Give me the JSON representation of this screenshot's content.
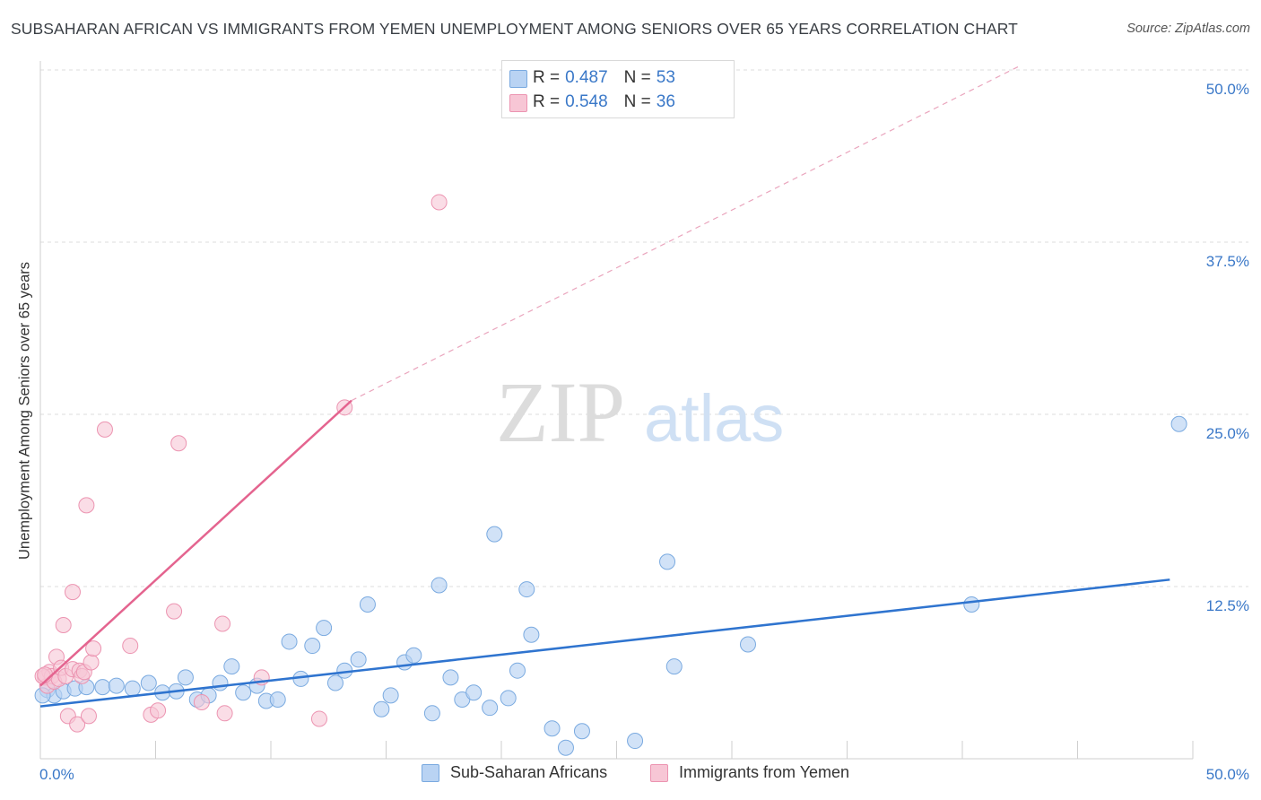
{
  "title": "SUBSAHARAN AFRICAN VS IMMIGRANTS FROM YEMEN UNEMPLOYMENT AMONG SENIORS OVER 65 YEARS CORRELATION CHART",
  "source": "Source: ZipAtlas.com",
  "watermark": {
    "zip": "ZIP",
    "atlas": "atlas"
  },
  "legend": {
    "rows": [
      {
        "r_label": "R =",
        "r_value": "0.487",
        "n_label": "N =",
        "n_value": "53"
      },
      {
        "r_label": "R =",
        "r_value": "0.548",
        "n_label": "N =",
        "n_value": "36"
      }
    ]
  },
  "bottom_legend": [
    "Sub-Saharan Africans",
    "Immigrants from Yemen"
  ],
  "colors": {
    "blue_fill": "#b9d3f3",
    "blue_stroke": "#7aaae0",
    "blue_line": "#2f74cf",
    "pink_fill": "#f7c6d5",
    "pink_stroke": "#ec94b1",
    "pink_line": "#e4648f",
    "axis_text": "#3a78c8",
    "grid": "#dddddd"
  },
  "chart_data": {
    "type": "scatter",
    "title": "SUBSAHARAN AFRICAN VS IMMIGRANTS FROM YEMEN UNEMPLOYMENT AMONG SENIORS OVER 65 YEARS CORRELATION CHART",
    "xlabel": "",
    "ylabel": "Unemployment Among Seniors over 65 years",
    "xlim": [
      0,
      50
    ],
    "ylim": [
      0,
      50
    ],
    "x_tick_labels": [
      "0.0%",
      "50.0%"
    ],
    "y_tick_labels": [
      {
        "value": 12.5,
        "label": "12.5%"
      },
      {
        "value": 25.0,
        "label": "25.0%"
      },
      {
        "value": 37.5,
        "label": "37.5%"
      },
      {
        "value": 50.0,
        "label": "50.0%"
      }
    ],
    "series": [
      {
        "name": "Sub-Saharan Africans",
        "R": 0.487,
        "N": 53,
        "trend": {
          "x": [
            0,
            49
          ],
          "y": [
            3.8,
            13.0
          ],
          "dashed_extension": false
        },
        "points": [
          [
            0.3,
            5.0
          ],
          [
            0.6,
            4.6
          ],
          [
            1.0,
            4.9
          ],
          [
            1.5,
            5.1
          ],
          [
            2.0,
            5.2
          ],
          [
            2.7,
            5.2
          ],
          [
            3.3,
            5.3
          ],
          [
            4.0,
            5.1
          ],
          [
            4.7,
            5.5
          ],
          [
            5.3,
            4.8
          ],
          [
            5.9,
            4.9
          ],
          [
            6.3,
            5.9
          ],
          [
            6.8,
            4.3
          ],
          [
            7.3,
            4.6
          ],
          [
            7.8,
            5.5
          ],
          [
            8.3,
            6.7
          ],
          [
            8.8,
            4.8
          ],
          [
            9.4,
            5.3
          ],
          [
            9.8,
            4.2
          ],
          [
            10.3,
            4.3
          ],
          [
            10.8,
            8.5
          ],
          [
            11.3,
            5.8
          ],
          [
            11.8,
            8.2
          ],
          [
            12.3,
            9.5
          ],
          [
            12.8,
            5.5
          ],
          [
            13.2,
            6.4
          ],
          [
            13.8,
            7.2
          ],
          [
            14.2,
            11.2
          ],
          [
            14.8,
            3.6
          ],
          [
            15.2,
            4.6
          ],
          [
            15.8,
            7.0
          ],
          [
            16.2,
            7.5
          ],
          [
            17.0,
            3.3
          ],
          [
            17.3,
            12.6
          ],
          [
            17.8,
            5.9
          ],
          [
            18.3,
            4.3
          ],
          [
            18.8,
            4.8
          ],
          [
            19.5,
            3.7
          ],
          [
            19.7,
            16.3
          ],
          [
            20.3,
            4.4
          ],
          [
            20.7,
            6.4
          ],
          [
            21.1,
            12.3
          ],
          [
            21.3,
            9.0
          ],
          [
            22.2,
            2.2
          ],
          [
            22.8,
            0.8
          ],
          [
            23.5,
            2.0
          ],
          [
            25.8,
            1.3
          ],
          [
            27.2,
            14.3
          ],
          [
            27.5,
            6.7
          ],
          [
            30.7,
            8.3
          ],
          [
            40.4,
            11.2
          ],
          [
            49.4,
            24.3
          ],
          [
            0.1,
            4.6
          ]
        ]
      },
      {
        "name": "Immigrants from Yemen",
        "R": 0.548,
        "N": 36,
        "trend": {
          "x": [
            0,
            13.5
          ],
          "y": [
            5.3,
            26.0
          ],
          "dashed_to": {
            "x": 42.5,
            "y": 50.3
          }
        },
        "points": [
          [
            0.2,
            5.9
          ],
          [
            0.3,
            5.3
          ],
          [
            0.4,
            6.3
          ],
          [
            0.5,
            6.0
          ],
          [
            0.6,
            5.6
          ],
          [
            0.7,
            7.4
          ],
          [
            0.8,
            5.8
          ],
          [
            0.9,
            6.6
          ],
          [
            1.0,
            9.7
          ],
          [
            1.1,
            6.0
          ],
          [
            1.2,
            3.1
          ],
          [
            1.4,
            6.5
          ],
          [
            1.4,
            12.1
          ],
          [
            1.6,
            2.5
          ],
          [
            1.7,
            6.4
          ],
          [
            1.8,
            6.0
          ],
          [
            1.9,
            6.3
          ],
          [
            2.0,
            18.4
          ],
          [
            2.1,
            3.1
          ],
          [
            2.2,
            7.0
          ],
          [
            2.3,
            8.0
          ],
          [
            2.8,
            23.9
          ],
          [
            3.9,
            8.2
          ],
          [
            4.8,
            3.2
          ],
          [
            5.1,
            3.5
          ],
          [
            5.8,
            10.7
          ],
          [
            6.0,
            22.9
          ],
          [
            7.0,
            4.1
          ],
          [
            7.9,
            9.8
          ],
          [
            8.0,
            3.3
          ],
          [
            9.6,
            5.9
          ],
          [
            12.1,
            2.9
          ],
          [
            13.2,
            25.5
          ],
          [
            17.3,
            40.4
          ],
          [
            0.1,
            6.0
          ],
          [
            0.2,
            6.1
          ]
        ]
      }
    ]
  }
}
